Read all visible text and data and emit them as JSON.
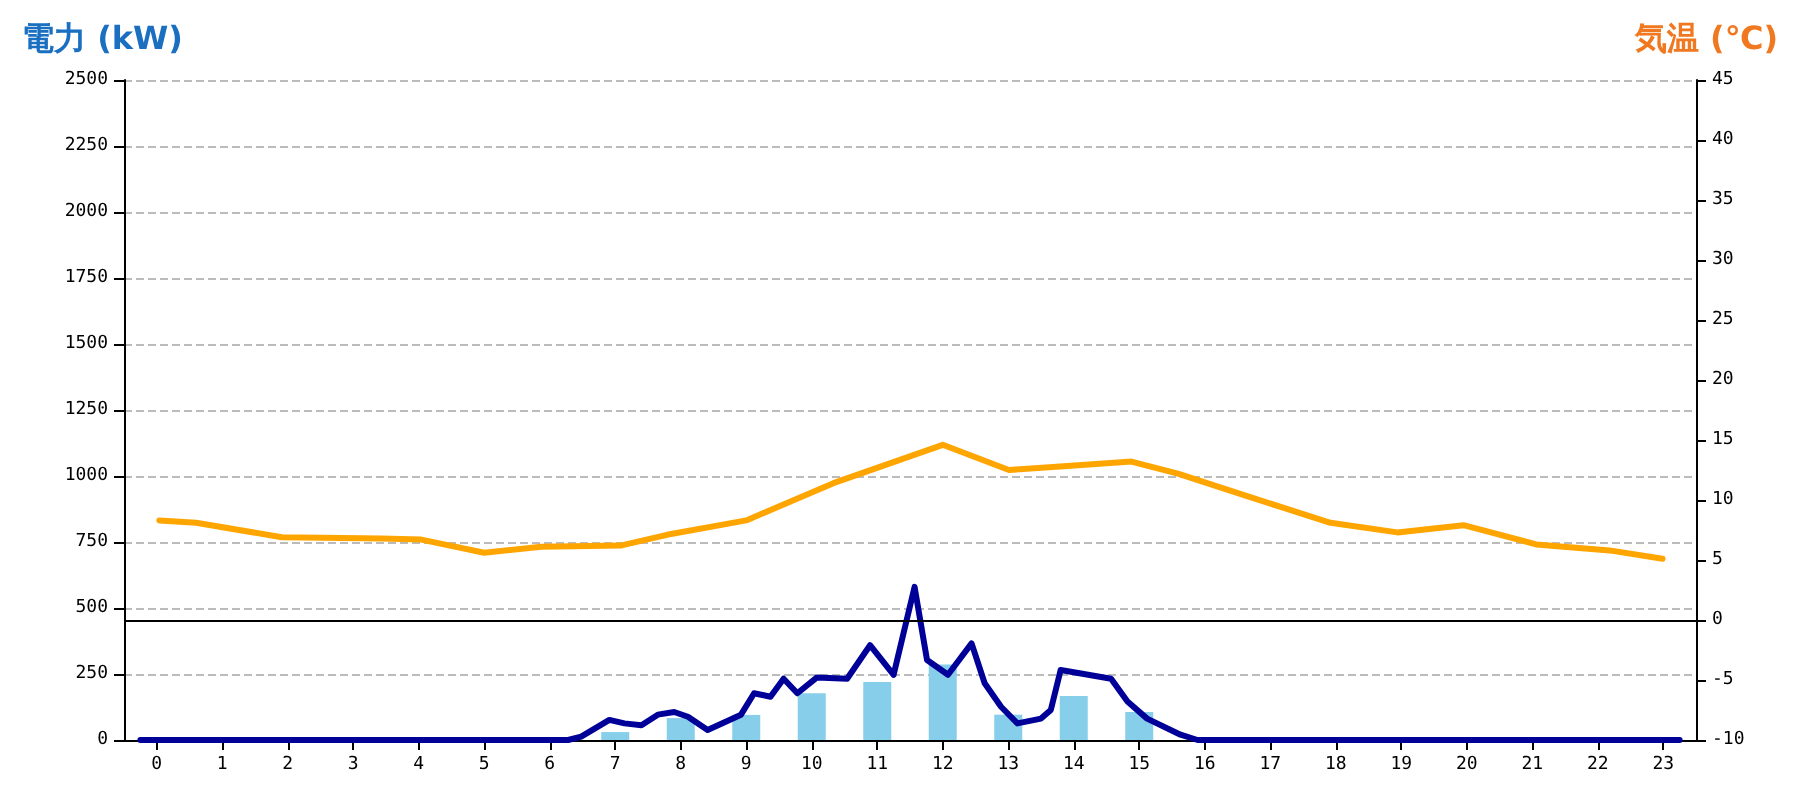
{
  "chart_data": {
    "type": "bar",
    "ylabel": "電力 (kW)",
    "y2label": "気温 (℃)",
    "series": [
      {
        "color": "#87ceeb",
        "x": [
          0,
          1,
          2,
          3,
          4,
          5,
          6,
          7,
          8,
          9,
          10,
          11,
          12,
          13,
          14,
          15,
          16,
          17,
          18,
          19,
          20,
          21,
          22,
          23
        ],
        "values": [
          0,
          0,
          0,
          0,
          0,
          0,
          0,
          30,
          83,
          95,
          177,
          220,
          286,
          96,
          167,
          106,
          0,
          0,
          0,
          0,
          0,
          0,
          0,
          0
        ]
      },
      {
        "type": "line",
        "color": "#000099",
        "x": [
          -0.25,
          6.28,
          6.48,
          6.91,
          7.14,
          7.4,
          7.65,
          7.9,
          8.11,
          8.41,
          8.92,
          9.12,
          9.37,
          9.57,
          9.78,
          10.08,
          10.54,
          10.89,
          11.25,
          11.57,
          11.76,
          12.08,
          12.44,
          12.64,
          12.89,
          13.14,
          13.5,
          13.65,
          13.8,
          14.11,
          14.57,
          14.82,
          15.12,
          15.63,
          15.89,
          23.25
        ],
        "values": [
          0,
          0,
          13,
          76,
          63,
          56,
          96,
          106,
          88,
          38,
          96,
          177,
          164,
          232,
          177,
          237,
          232,
          359,
          247,
          580,
          303,
          247,
          366,
          215,
          126,
          63,
          81,
          114,
          265,
          252,
          232,
          146,
          81,
          20,
          0,
          0
        ]
      },
      {
        "type": "line",
        "color": "#ffa500",
        "axis": "y2",
        "x": [
          0.04,
          0.6,
          1.91,
          3.43,
          4.04,
          5.0,
          5.87,
          7.08,
          7.79,
          9.0,
          10.33,
          11.64,
          12.0,
          13.01,
          14.07,
          14.88,
          15.59,
          16.6,
          17.92,
          18.94,
          19.95,
          21.06,
          22.18,
          22.99
        ],
        "values": [
          8.3,
          8.1,
          6.9,
          6.8,
          6.7,
          5.6,
          6.1,
          6.2,
          7.1,
          8.3,
          11.4,
          13.9,
          14.6,
          12.5,
          12.9,
          13.2,
          12.2,
          10.4,
          8.1,
          7.3,
          7.9,
          6.3,
          5.8,
          5.1
        ]
      }
    ],
    "xlim": [
      -0.5,
      23.5
    ],
    "xticks": [
      0,
      1,
      2,
      3,
      4,
      5,
      6,
      7,
      8,
      9,
      10,
      11,
      12,
      13,
      14,
      15,
      16,
      17,
      18,
      19,
      20,
      21,
      22,
      23
    ],
    "ylim": [
      0,
      2500
    ],
    "yticks": [
      0,
      250,
      500,
      750,
      1000,
      1250,
      1500,
      1750,
      2000,
      2250,
      2500
    ],
    "y2lim": [
      -10,
      45
    ],
    "y2ticks": [
      -10,
      -5,
      0,
      5,
      10,
      15,
      20,
      25,
      30,
      35,
      40,
      45
    ],
    "ref_lines": [
      {
        "axis": "y2",
        "value": 0,
        "color": "#000000"
      }
    ],
    "grid": "y",
    "marker": "none",
    "line_style": "solid"
  }
}
